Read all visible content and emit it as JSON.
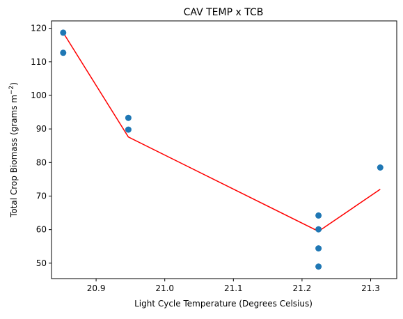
{
  "chart_data": {
    "type": "scatter",
    "title": "CAV TEMP x TCB",
    "xlabel": "Light Cycle Temperature (Degrees Celsius)",
    "ylabel_main": "Total Crop Biomass (grams m",
    "ylabel_sup": "−2",
    "ylabel_close": ")",
    "xlim": [
      20.835,
      21.338
    ],
    "ylim": [
      45.4,
      122.2
    ],
    "x_ticks": [
      20.9,
      21.0,
      21.1,
      21.2,
      21.3
    ],
    "x_tick_labels": [
      "20.9",
      "21.0",
      "21.1",
      "21.2",
      "21.3"
    ],
    "y_ticks": [
      50,
      60,
      70,
      80,
      90,
      100,
      110,
      120
    ],
    "y_tick_labels": [
      "50",
      "60",
      "70",
      "80",
      "90",
      "100",
      "110",
      "120"
    ],
    "grid": false,
    "series": [
      {
        "kind": "scatter",
        "color": "#1f77b4",
        "x": [
          20.852,
          20.852,
          20.947,
          20.947,
          21.224,
          21.224,
          21.224,
          21.224,
          21.314
        ],
        "y": [
          118.7,
          112.7,
          93.3,
          89.8,
          64.2,
          60.1,
          54.4,
          49.0,
          78.5
        ]
      },
      {
        "kind": "line",
        "color": "#ff0000",
        "x": [
          20.852,
          20.947,
          21.224,
          21.314
        ],
        "y": [
          118.7,
          87.6,
          59.5,
          72.0
        ]
      }
    ]
  }
}
